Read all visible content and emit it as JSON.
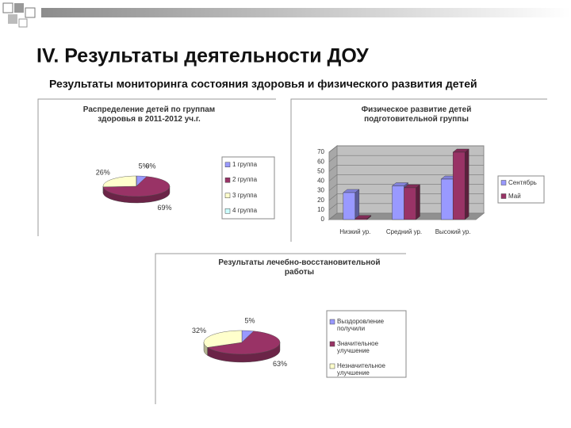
{
  "slide": {
    "title": "IV. Результаты деятельности ДОУ",
    "subtitle": "Результаты мониторинга состояния здоровья и физического развития детей"
  },
  "chart_data": [
    {
      "type": "pie",
      "title": "Распределение детей по группам здоровья в 2011-2012 уч.г.",
      "categories": [
        "1 группа",
        "2 группа",
        "3 группа",
        "4 группа"
      ],
      "values": [
        5,
        69,
        26,
        0
      ],
      "value_labels": [
        "5%",
        "69%",
        "26%",
        "0%"
      ],
      "colors": [
        "#9999ff",
        "#993366",
        "#ffffcc",
        "#ccffff"
      ]
    },
    {
      "type": "bar",
      "title": "Физическое развитие детей подготовительной группы",
      "categories": [
        "Низкий ур.",
        "Средний ур.",
        "Высокий ур."
      ],
      "series": [
        {
          "name": "Сентябрь",
          "color": "#9999ff",
          "values": [
            28,
            35,
            42
          ]
        },
        {
          "name": "Май",
          "color": "#993366",
          "values": [
            1,
            33,
            70
          ]
        }
      ],
      "ylim": [
        0,
        70
      ],
      "yticks": [
        0,
        10,
        20,
        30,
        40,
        50,
        60,
        70
      ],
      "grid": true
    },
    {
      "type": "pie",
      "title": "Результаты лечебно-восстановительной работы",
      "categories": [
        "Выздоровление получили",
        "Значительное улучшение",
        "Незначительное улучшение"
      ],
      "values": [
        5,
        63,
        32
      ],
      "value_labels": [
        "5%",
        "63%",
        "32%"
      ],
      "colors": [
        "#9999ff",
        "#993366",
        "#ffffcc"
      ]
    }
  ]
}
